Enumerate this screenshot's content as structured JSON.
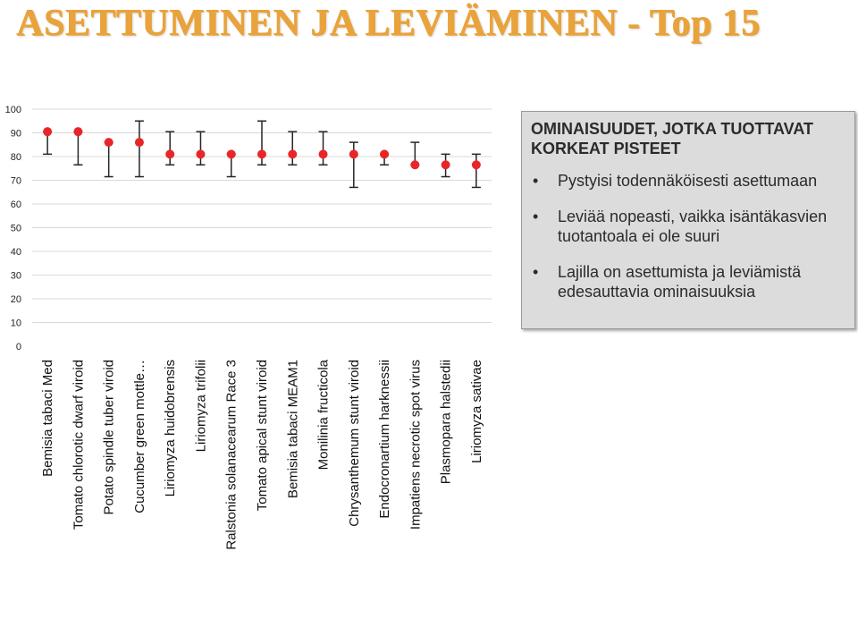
{
  "title": "ASETTUMINEN JA LEVIÄMINEN  - Top 15",
  "info_box": {
    "heading": "OMINAISUUDET, JOTKA TUOTTAVAT KORKEAT PISTEET",
    "bullets": [
      "Pystyisi todennäköisesti asettumaan",
      "Leviää nopeasti, vaikka isäntäkasvien tuotantoala ei ole suuri",
      "Lajilla on asettumista ja leviämistä edesauttavia ominaisuuksia"
    ]
  },
  "colors": {
    "title": "#e8a33c",
    "point": "#e8262a",
    "error_bar": "#262626",
    "grid": "#d9d9d9",
    "box_background": "#dcdcdc"
  },
  "chart_data": {
    "type": "scatter",
    "title": "",
    "xlabel": "",
    "ylabel": "",
    "ylim": [
      0,
      100
    ],
    "yticks": [
      0,
      10,
      20,
      30,
      40,
      50,
      60,
      70,
      80,
      90,
      100
    ],
    "grid": true,
    "categories": [
      "Bemisia tabaci Med",
      "Tomato chlorotic dwarf viroid",
      "Potato spindle tuber viroid",
      "Cucumber green mottle…",
      "Liriomyza huidobrensis",
      "Liriomyza trifolii",
      "Ralstonia solanacearum Race 3",
      "Tomato apical stunt viroid",
      "Bemisia tabaci MEAM1",
      "Monilinia fructicola",
      "Chrysanthemum stunt viroid",
      "Endocronartium harknessii",
      "Impatiens necrotic spot virus",
      "Plasmopara halstedii",
      "Liriomyza sativae"
    ],
    "values": [
      90.5,
      90.5,
      86,
      86,
      81,
      81,
      81,
      81,
      81,
      81,
      81,
      81,
      76.5,
      76.5,
      76.5
    ],
    "error_low": [
      81,
      76.5,
      71.5,
      71.5,
      76.5,
      76.5,
      71.5,
      76.5,
      76.5,
      76.5,
      67,
      76.5,
      76.5,
      71.5,
      67
    ],
    "error_high": [
      90.5,
      90.5,
      86,
      95,
      90.5,
      90.5,
      81,
      95,
      90.5,
      90.5,
      86,
      81,
      86,
      81,
      81
    ]
  }
}
